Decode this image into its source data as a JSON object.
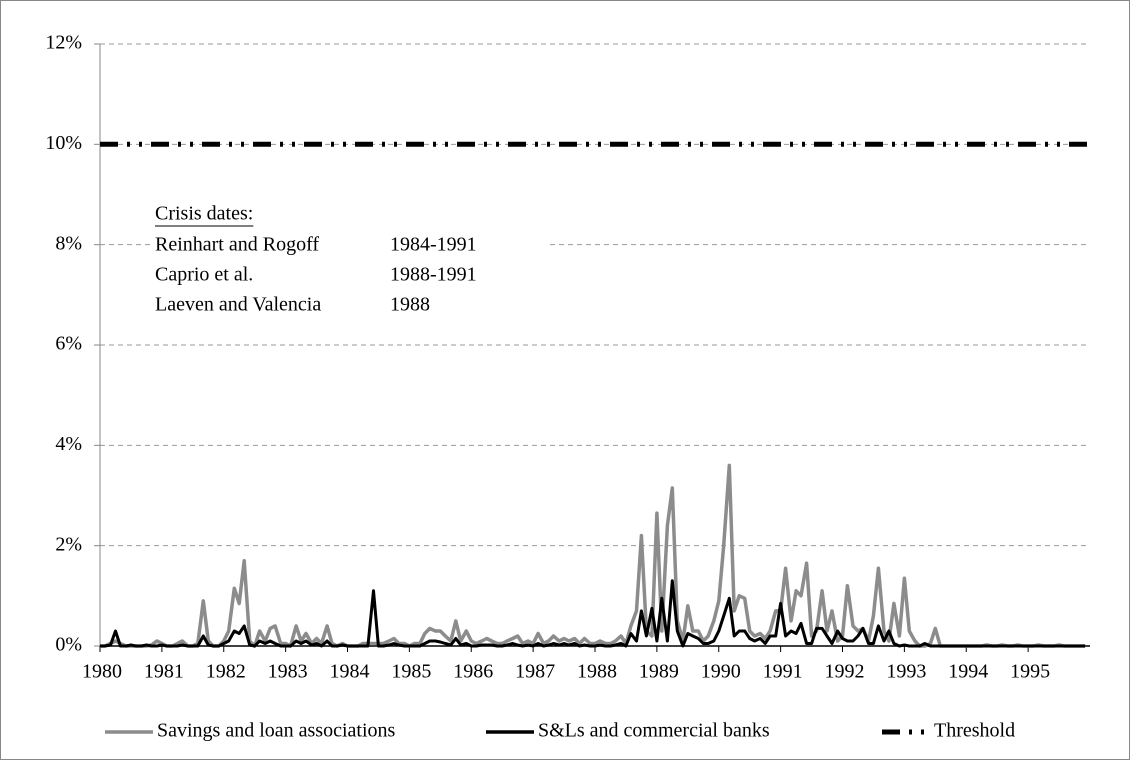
{
  "chart_data": {
    "type": "line",
    "xlim": [
      1980,
      1996
    ],
    "xticks": [
      1980,
      1981,
      1982,
      1983,
      1984,
      1985,
      1986,
      1987,
      1988,
      1989,
      1990,
      1991,
      1992,
      1993,
      1994,
      1995
    ],
    "ylim": [
      0,
      12
    ],
    "yticks": [
      {
        "value": 0,
        "label": "0%"
      },
      {
        "value": 2,
        "label": "2%"
      },
      {
        "value": 4,
        "label": "4%"
      },
      {
        "value": 6,
        "label": "6%"
      },
      {
        "value": 8,
        "label": "8%"
      },
      {
        "value": 10,
        "label": "10%"
      },
      {
        "value": 12,
        "label": "12%"
      }
    ],
    "grid": true,
    "legend": "bottom",
    "x": [
      1980,
      1980.08,
      1980.17,
      1980.25,
      1980.33,
      1980.42,
      1980.5,
      1980.58,
      1980.67,
      1980.75,
      1980.83,
      1980.92,
      1981,
      1981.08,
      1981.17,
      1981.25,
      1981.33,
      1981.42,
      1981.5,
      1981.58,
      1981.67,
      1981.75,
      1981.83,
      1981.92,
      1982,
      1982.08,
      1982.17,
      1982.25,
      1982.33,
      1982.42,
      1982.5,
      1982.58,
      1982.67,
      1982.75,
      1982.83,
      1982.92,
      1983,
      1983.08,
      1983.17,
      1983.25,
      1983.33,
      1983.42,
      1983.5,
      1983.58,
      1983.67,
      1983.75,
      1983.83,
      1983.92,
      1984,
      1984.08,
      1984.17,
      1984.25,
      1984.33,
      1984.42,
      1984.5,
      1984.58,
      1984.67,
      1984.75,
      1984.83,
      1984.92,
      1985,
      1985.08,
      1985.17,
      1985.25,
      1985.33,
      1985.42,
      1985.5,
      1985.58,
      1985.67,
      1985.75,
      1985.83,
      1985.92,
      1986,
      1986.08,
      1986.17,
      1986.25,
      1986.33,
      1986.42,
      1986.5,
      1986.58,
      1986.67,
      1986.75,
      1986.83,
      1986.92,
      1987,
      1987.08,
      1987.17,
      1987.25,
      1987.33,
      1987.42,
      1987.5,
      1987.58,
      1987.67,
      1987.75,
      1987.83,
      1987.92,
      1988,
      1988.08,
      1988.17,
      1988.25,
      1988.33,
      1988.42,
      1988.5,
      1988.58,
      1988.67,
      1988.75,
      1988.83,
      1988.92,
      1989,
      1989.08,
      1989.17,
      1989.25,
      1989.33,
      1989.42,
      1989.5,
      1989.58,
      1989.67,
      1989.75,
      1989.83,
      1989.92,
      1990,
      1990.08,
      1990.17,
      1990.25,
      1990.33,
      1990.42,
      1990.5,
      1990.58,
      1990.67,
      1990.75,
      1990.83,
      1990.92,
      1991,
      1991.08,
      1991.17,
      1991.25,
      1991.33,
      1991.42,
      1991.5,
      1991.58,
      1991.67,
      1991.75,
      1991.83,
      1991.92,
      1992,
      1992.08,
      1992.17,
      1992.25,
      1992.33,
      1992.42,
      1992.5,
      1992.58,
      1992.67,
      1992.75,
      1992.83,
      1992.92,
      1993,
      1993.08,
      1993.17,
      1993.25,
      1993.33,
      1993.42,
      1993.5,
      1993.58,
      1993.67,
      1993.75,
      1993.83,
      1993.92,
      1994,
      1994.08,
      1994.17,
      1994.25,
      1994.33,
      1994.42,
      1994.5,
      1994.58,
      1994.67,
      1994.75,
      1994.83,
      1994.92,
      1995,
      1995.08,
      1995.17,
      1995.25,
      1995.33,
      1995.42,
      1995.5,
      1995.58,
      1995.67,
      1995.75,
      1995.83,
      1995.92
    ],
    "series": [
      {
        "name": "Savings and loan associations",
        "color": "#8c8c8c",
        "style": "solid",
        "values": [
          0,
          0,
          0.05,
          0.1,
          0.05,
          0,
          0,
          0,
          0,
          0,
          0.02,
          0.1,
          0.05,
          0,
          0,
          0.05,
          0.1,
          0,
          0,
          0.05,
          0.9,
          0.1,
          0,
          0,
          0.1,
          0.3,
          1.15,
          0.85,
          1.7,
          0.1,
          0,
          0.3,
          0.1,
          0.35,
          0.4,
          0.05,
          0.05,
          0,
          0.4,
          0.1,
          0.25,
          0.05,
          0.15,
          0.05,
          0.4,
          0.05,
          0,
          0.05,
          0,
          0,
          0,
          0.05,
          0.05,
          0.05,
          0.05,
          0.05,
          0.1,
          0.15,
          0.05,
          0.05,
          0,
          0.05,
          0.05,
          0.25,
          0.35,
          0.3,
          0.3,
          0.2,
          0.1,
          0.5,
          0.1,
          0.3,
          0.1,
          0.05,
          0.1,
          0.15,
          0.1,
          0.05,
          0.05,
          0.1,
          0.15,
          0.2,
          0.05,
          0.1,
          0.05,
          0.25,
          0.05,
          0.1,
          0.2,
          0.1,
          0.15,
          0.1,
          0.15,
          0.05,
          0.15,
          0.05,
          0.05,
          0.1,
          0.05,
          0.05,
          0.1,
          0.2,
          0.05,
          0.4,
          0.7,
          2.2,
          0.3,
          0.2,
          2.65,
          0.3,
          2.4,
          3.15,
          0.5,
          0.1,
          0.8,
          0.3,
          0.3,
          0.1,
          0.2,
          0.5,
          0.9,
          2.0,
          3.6,
          0.7,
          1.0,
          0.95,
          0.3,
          0.2,
          0.25,
          0.15,
          0.3,
          0.7,
          0.7,
          1.55,
          0.5,
          1.1,
          1.0,
          1.65,
          0.2,
          0.3,
          1.1,
          0.3,
          0.7,
          0.1,
          0.2,
          1.2,
          0.4,
          0.3,
          0.35,
          0.1,
          0.6,
          1.55,
          0.3,
          0.1,
          0.85,
          0.2,
          1.35,
          0.3,
          0.1,
          0,
          0,
          0.05,
          0.35,
          0,
          0,
          0,
          0,
          0,
          0,
          0,
          0,
          0,
          0.02,
          0,
          0,
          0.02,
          0,
          0,
          0.02,
          0,
          0,
          0,
          0.02,
          0,
          0,
          0,
          0.02,
          0,
          0,
          0,
          0,
          0
        ]
      },
      {
        "name": "S&Ls and commercial banks",
        "color": "#000000",
        "style": "solid",
        "values": [
          0,
          0,
          0.02,
          0.3,
          0,
          0,
          0.02,
          0,
          0,
          0.02,
          0,
          0,
          0.02,
          0,
          0,
          0,
          0.02,
          0,
          0,
          0,
          0.2,
          0.02,
          0,
          0,
          0.05,
          0.1,
          0.3,
          0.25,
          0.4,
          0.02,
          0,
          0.1,
          0.05,
          0.1,
          0.05,
          0,
          0,
          0,
          0.1,
          0.05,
          0.1,
          0.02,
          0.05,
          0,
          0.1,
          0,
          0,
          0.02,
          0,
          0,
          0,
          0,
          0,
          1.1,
          0,
          0,
          0.02,
          0.05,
          0.02,
          0,
          0,
          0,
          0,
          0.05,
          0.1,
          0.1,
          0.08,
          0.05,
          0.02,
          0.15,
          0.02,
          0.05,
          0,
          0,
          0.02,
          0.02,
          0.02,
          0,
          0,
          0.02,
          0.05,
          0.02,
          0,
          0.02,
          0,
          0.05,
          0,
          0.02,
          0.05,
          0.02,
          0.05,
          0.02,
          0.05,
          0,
          0.02,
          0,
          0,
          0.02,
          0,
          0,
          0.02,
          0.05,
          0,
          0.25,
          0.1,
          0.7,
          0.2,
          0.75,
          0.1,
          0.95,
          0.1,
          1.3,
          0.3,
          0,
          0.25,
          0.2,
          0.15,
          0.05,
          0.05,
          0.1,
          0.3,
          0.6,
          0.95,
          0.2,
          0.3,
          0.3,
          0.15,
          0.1,
          0.15,
          0.05,
          0.2,
          0.2,
          0.85,
          0.2,
          0.3,
          0.25,
          0.45,
          0.05,
          0.05,
          0.35,
          0.35,
          0.2,
          0.05,
          0.3,
          0.15,
          0.1,
          0.1,
          0.2,
          0.35,
          0.05,
          0.05,
          0.4,
          0.1,
          0.3,
          0.05,
          0,
          0.02,
          0,
          0,
          0,
          0.05,
          0,
          0,
          0,
          0,
          0,
          0,
          0,
          0,
          0,
          0,
          0,
          0,
          0,
          0,
          0,
          0,
          0,
          0,
          0,
          0,
          0,
          0,
          0,
          0,
          0,
          0,
          0,
          0,
          0,
          0,
          0
        ]
      },
      {
        "name": "Threshold",
        "color": "#000000",
        "style": "dash-dot-dot",
        "x": [
          1980,
          1996
        ],
        "values": [
          10,
          10
        ]
      }
    ],
    "annotation": {
      "title": "Crisis dates:",
      "rows": [
        [
          "Reinhart and Rogoff",
          "1984-1991"
        ],
        [
          "Caprio et al.",
          "1988-1991"
        ],
        [
          "Laeven and Valencia",
          "1988"
        ]
      ]
    }
  }
}
